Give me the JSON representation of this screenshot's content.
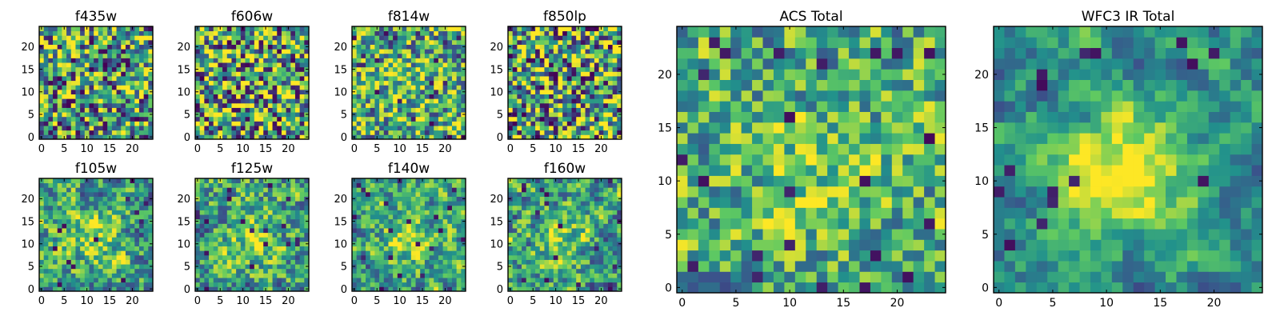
{
  "colormap": "viridis",
  "colormap_stops": [
    "#440154",
    "#3b528b",
    "#21918c",
    "#5ec962",
    "#fde725"
  ],
  "chart_data": [
    {
      "type": "heatmap",
      "title": "f435w",
      "grid": [
        25,
        25
      ],
      "xlim": [
        0,
        24
      ],
      "ylim": [
        0,
        24
      ],
      "x_ticks": [
        0,
        5,
        10,
        15,
        20
      ],
      "y_ticks": [
        0,
        5,
        10,
        15,
        20
      ],
      "x_tick_labels": [
        "0",
        "5",
        "10",
        "15",
        "20"
      ],
      "y_tick_labels": [
        "0",
        "5",
        "10",
        "15",
        "20"
      ],
      "seed": 11,
      "smooth": 0,
      "blob": 0,
      "mean": 0.55,
      "spread": 0.55
    },
    {
      "type": "heatmap",
      "title": "f606w",
      "grid": [
        25,
        25
      ],
      "xlim": [
        0,
        24
      ],
      "ylim": [
        0,
        24
      ],
      "x_ticks": [
        0,
        5,
        10,
        15,
        20
      ],
      "y_ticks": [
        0,
        5,
        10,
        15,
        20
      ],
      "x_tick_labels": [
        "0",
        "5",
        "10",
        "15",
        "20"
      ],
      "y_tick_labels": [
        "0",
        "5",
        "10",
        "15",
        "20"
      ],
      "seed": 23,
      "smooth": 0,
      "blob": 0,
      "mean": 0.6,
      "spread": 0.6
    },
    {
      "type": "heatmap",
      "title": "f814w",
      "grid": [
        25,
        25
      ],
      "xlim": [
        0,
        24
      ],
      "ylim": [
        0,
        24
      ],
      "x_ticks": [
        0,
        5,
        10,
        15,
        20
      ],
      "y_ticks": [
        0,
        5,
        10,
        15,
        20
      ],
      "x_tick_labels": [
        "0",
        "5",
        "10",
        "15",
        "20"
      ],
      "y_tick_labels": [
        "0",
        "5",
        "10",
        "15",
        "20"
      ],
      "seed": 37,
      "smooth": 0.2,
      "blob": 0.05,
      "mean": 0.62,
      "spread": 0.55
    },
    {
      "type": "heatmap",
      "title": "f850lp",
      "grid": [
        25,
        25
      ],
      "xlim": [
        0,
        24
      ],
      "ylim": [
        0,
        24
      ],
      "x_ticks": [
        0,
        5,
        10,
        15,
        20
      ],
      "y_ticks": [
        0,
        5,
        10,
        15,
        20
      ],
      "x_tick_labels": [
        "0",
        "5",
        "10",
        "15",
        "20"
      ],
      "y_tick_labels": [
        "0",
        "5",
        "10",
        "15",
        "20"
      ],
      "seed": 41,
      "smooth": 0,
      "blob": 0,
      "mean": 0.58,
      "spread": 0.6
    },
    {
      "type": "heatmap",
      "title": "f105w",
      "grid": [
        25,
        25
      ],
      "xlim": [
        0,
        24
      ],
      "ylim": [
        0,
        24
      ],
      "x_ticks": [
        0,
        5,
        10,
        15,
        20
      ],
      "y_ticks": [
        0,
        5,
        10,
        15,
        20
      ],
      "x_tick_labels": [
        "0",
        "5",
        "10",
        "15",
        "20"
      ],
      "y_tick_labels": [
        "0",
        "5",
        "10",
        "15",
        "20"
      ],
      "seed": 53,
      "smooth": 0.45,
      "blob": 0.12,
      "mean": 0.58,
      "spread": 0.55
    },
    {
      "type": "heatmap",
      "title": "f125w",
      "grid": [
        25,
        25
      ],
      "xlim": [
        0,
        24
      ],
      "ylim": [
        0,
        24
      ],
      "x_ticks": [
        0,
        5,
        10,
        15,
        20
      ],
      "y_ticks": [
        0,
        5,
        10,
        15,
        20
      ],
      "x_tick_labels": [
        "0",
        "5",
        "10",
        "15",
        "20"
      ],
      "y_tick_labels": [
        "0",
        "5",
        "10",
        "15",
        "20"
      ],
      "seed": 67,
      "smooth": 0.45,
      "blob": 0.12,
      "mean": 0.58,
      "spread": 0.55
    },
    {
      "type": "heatmap",
      "title": "f140w",
      "grid": [
        25,
        25
      ],
      "xlim": [
        0,
        24
      ],
      "ylim": [
        0,
        24
      ],
      "x_ticks": [
        0,
        5,
        10,
        15,
        20
      ],
      "y_ticks": [
        0,
        5,
        10,
        15,
        20
      ],
      "x_tick_labels": [
        "0",
        "5",
        "10",
        "15",
        "20"
      ],
      "y_tick_labels": [
        "0",
        "5",
        "10",
        "15",
        "20"
      ],
      "seed": 79,
      "smooth": 0.5,
      "blob": 0.15,
      "mean": 0.58,
      "spread": 0.55
    },
    {
      "type": "heatmap",
      "title": "f160w",
      "grid": [
        25,
        25
      ],
      "xlim": [
        0,
        24
      ],
      "ylim": [
        0,
        24
      ],
      "x_ticks": [
        0,
        5,
        10,
        15,
        20
      ],
      "y_ticks": [
        0,
        5,
        10,
        15,
        20
      ],
      "x_tick_labels": [
        "0",
        "5",
        "10",
        "15",
        "20"
      ],
      "y_tick_labels": [
        "0",
        "5",
        "10",
        "15",
        "20"
      ],
      "seed": 83,
      "smooth": 0.5,
      "blob": 0.15,
      "mean": 0.55,
      "spread": 0.6
    },
    {
      "type": "heatmap",
      "title": "ACS Total",
      "grid": [
        25,
        25
      ],
      "xlim": [
        0,
        24
      ],
      "ylim": [
        0,
        24
      ],
      "x_ticks": [
        0,
        5,
        10,
        15,
        20
      ],
      "y_ticks": [
        0,
        5,
        10,
        15,
        20
      ],
      "x_tick_labels": [
        "0",
        "5",
        "10",
        "15",
        "20"
      ],
      "y_tick_labels": [
        "0",
        "5",
        "10",
        "15",
        "20"
      ],
      "seed": 97,
      "smooth": 0.3,
      "blob": 0.08,
      "mean": 0.62,
      "spread": 0.45
    },
    {
      "type": "heatmap",
      "title": "WFC3 IR Total",
      "grid": [
        25,
        25
      ],
      "xlim": [
        0,
        24
      ],
      "ylim": [
        0,
        24
      ],
      "x_ticks": [
        0,
        5,
        10,
        15,
        20
      ],
      "y_ticks": [
        0,
        5,
        10,
        15,
        20
      ],
      "x_tick_labels": [
        "0",
        "5",
        "10",
        "15",
        "20"
      ],
      "y_tick_labels": [
        "0",
        "5",
        "10",
        "15",
        "20"
      ],
      "seed": 101,
      "smooth": 0.65,
      "blob": 0.35,
      "mean": 0.5,
      "spread": 0.45
    }
  ]
}
